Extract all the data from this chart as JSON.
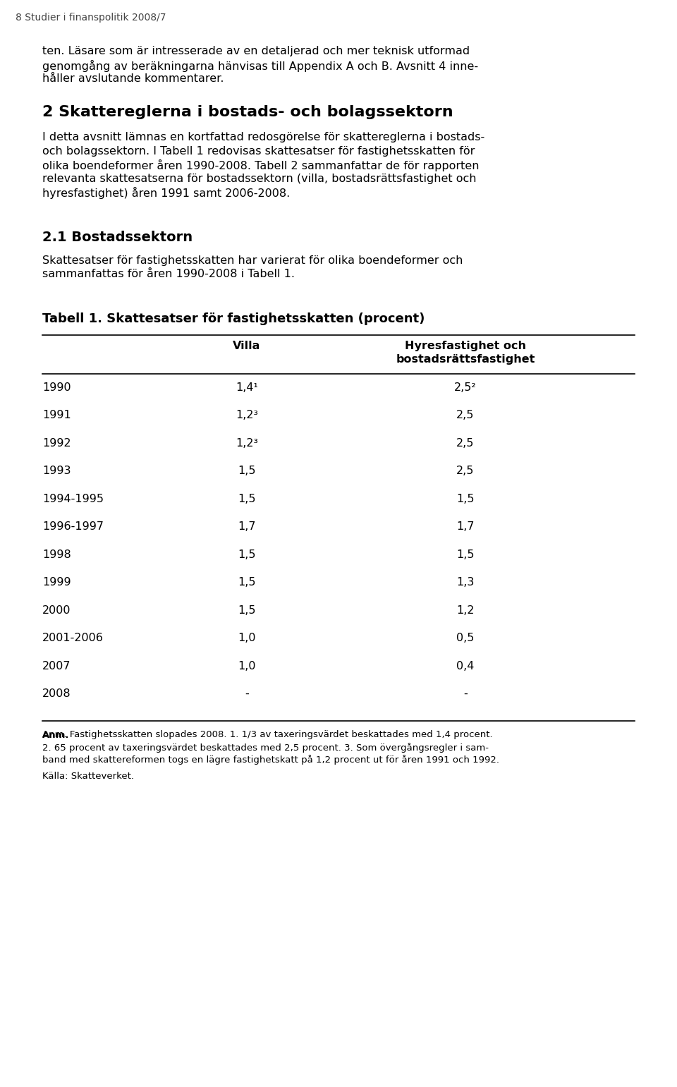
{
  "header": "8 Studier i finanspolitik 2008/7",
  "section_title": "2 Skattereglerna i bostads- och bolagssektorn",
  "para1_line1": "ten. Läsare som är intresserade av en detaljerad och mer teknisk utformad",
  "para1_line2": "genomgång av beräkningarna hänvisas till Appendix A och B. Avsnitt 4 inne-",
  "para1_line3": "håller avslutande kommentarer.",
  "section_body_lines": [
    "I detta avsnitt lämnas en kortfattad redosgörelse för skattereglerna i bostads-",
    "och bolagssektorn. I Tabell 1 redovisas skattesatser för fastighetsskatten för",
    "olika boendeformer åren 1990-2008. Tabell 2 sammanfattar de för rapporten",
    "relevanta skattesatserna för bostadssektorn (villa, bostadsrättsfastighet och",
    "hyresfastighet) åren 1991 samt 2006-2008."
  ],
  "subsection_title": "2.1 Bostadssektorn",
  "subsection_body_lines": [
    "Skattesatser för fastighetsskatten har varierat för olika boendeformer och",
    "sammanfattas för åren 1990-2008 i Tabell 1."
  ],
  "table_title": "Tabell 1. Skattesatser för fastighetsskatten (procent)",
  "col_header_villa": "Villa",
  "col_header_hyres_line1": "Hyresfastighet och",
  "col_header_hyres_line2": "bostadsrättsfastighet",
  "rows": [
    {
      "year": "1990",
      "villa": "1,4¹",
      "hyres": "2,5²"
    },
    {
      "year": "1991",
      "villa": "1,2³",
      "hyres": "2,5"
    },
    {
      "year": "1992",
      "villa": "1,2³",
      "hyres": "2,5"
    },
    {
      "year": "1993",
      "villa": "1,5",
      "hyres": "2,5"
    },
    {
      "year": "1994-1995",
      "villa": "1,5",
      "hyres": "1,5"
    },
    {
      "year": "1996-1997",
      "villa": "1,7",
      "hyres": "1,7"
    },
    {
      "year": "1998",
      "villa": "1,5",
      "hyres": "1,5"
    },
    {
      "year": "1999",
      "villa": "1,5",
      "hyres": "1,3"
    },
    {
      "year": "2000",
      "villa": "1,5",
      "hyres": "1,2"
    },
    {
      "year": "2001-2006",
      "villa": "1,0",
      "hyres": "0,5"
    },
    {
      "year": "2007",
      "villa": "1,0",
      "hyres": "0,4"
    },
    {
      "year": "2008",
      "villa": "-",
      "hyres": "-"
    }
  ],
  "footnote_bold": "Anm.",
  "footnote_lines": [
    "Fastighetsskatten slopades 2008. 1. 1/3 av taxeringsvärdet beskattades med 1,4 procent.",
    "2. 65 procent av taxeringsvärdet beskattades med 2,5 procent. 3. Som övergångsregler i sam-",
    "band med skattereformen togs en lägre fastighetskatt på 1,2 procent ut för åren 1991 och 1992."
  ],
  "source": "Källa: Skatteverket.",
  "bg_color": "#ffffff",
  "text_color": "#000000"
}
